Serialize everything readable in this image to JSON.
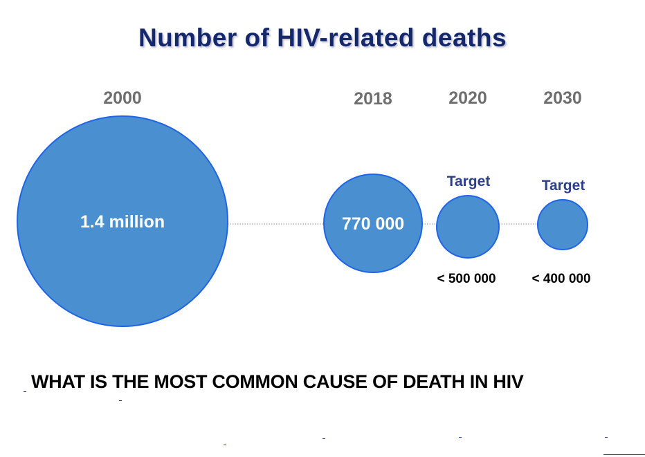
{
  "title": "Number of HIV-related deaths",
  "colors": {
    "bubble_fill": "#4a8fcf",
    "bubble_stroke": "#1f64e6",
    "title": "#14286b",
    "year_label": "#6e6e6e",
    "target_label": "#2b3f8a",
    "connector": "#8a8a8a"
  },
  "chart_data": {
    "type": "bubble",
    "title": "Number of HIV-related deaths",
    "points": [
      {
        "year": "2000",
        "value": 1400000,
        "value_label": "1.4 million",
        "target_label": "",
        "below_label": ""
      },
      {
        "year": "2018",
        "value": 770000,
        "value_label": "770 000",
        "target_label": "",
        "below_label": ""
      },
      {
        "year": "2020",
        "value": 500000,
        "value_label": "",
        "target_label": "Target",
        "below_label": "< 500 000"
      },
      {
        "year": "2030",
        "value": 400000,
        "value_label": "",
        "target_label": "Target",
        "below_label": "< 400 000"
      }
    ],
    "connector": "dotted"
  },
  "question": "WHAT IS THE MOST COMMON CAUSE OF DEATH IN HIV"
}
